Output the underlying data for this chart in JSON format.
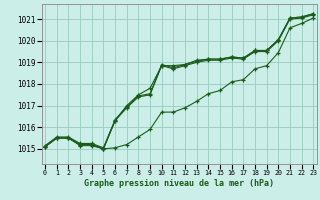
{
  "title": "Graphe pression niveau de la mer (hPa)",
  "xlabel_ticks": [
    0,
    1,
    2,
    3,
    4,
    5,
    6,
    7,
    8,
    9,
    10,
    11,
    12,
    13,
    14,
    15,
    16,
    17,
    18,
    19,
    20,
    21,
    22,
    23
  ],
  "ylim": [
    1014.3,
    1021.7
  ],
  "xlim": [
    -0.3,
    23.3
  ],
  "yticks": [
    1015,
    1016,
    1017,
    1018,
    1019,
    1020,
    1021
  ],
  "bg_color": "#cceee8",
  "grid_color": "#99ccbb",
  "line_color": "#1a5c1a",
  "series": [
    [
      1015.1,
      1015.5,
      1015.5,
      1015.2,
      1015.2,
      1015.0,
      1016.3,
      1016.9,
      1017.4,
      1017.5,
      1018.85,
      1018.7,
      1018.85,
      1019.0,
      1019.1,
      1019.1,
      1019.2,
      1019.15,
      1019.5,
      1019.5,
      1020.0,
      1021.0,
      1021.05,
      1021.2
    ],
    [
      1015.1,
      1015.5,
      1015.5,
      1015.2,
      1015.2,
      1015.0,
      1016.3,
      1017.0,
      1017.5,
      1017.8,
      1018.85,
      1018.85,
      1018.9,
      1019.1,
      1019.15,
      1019.15,
      1019.25,
      1019.2,
      1019.55,
      1019.55,
      1020.05,
      1021.05,
      1021.1,
      1021.25
    ],
    [
      1015.15,
      1015.55,
      1015.55,
      1015.25,
      1015.25,
      1015.05,
      1016.35,
      1016.95,
      1017.45,
      1017.55,
      1018.9,
      1018.75,
      1018.9,
      1019.05,
      1019.15,
      1019.15,
      1019.25,
      1019.2,
      1019.55,
      1019.55,
      1020.05,
      1021.05,
      1021.1,
      1021.25
    ],
    [
      1015.1,
      1015.5,
      1015.5,
      1015.15,
      1015.15,
      1015.0,
      1015.05,
      1015.2,
      1015.55,
      1015.9,
      1016.7,
      1016.7,
      1016.9,
      1017.2,
      1017.55,
      1017.7,
      1018.1,
      1018.2,
      1018.7,
      1018.85,
      1019.45,
      1020.6,
      1020.8,
      1021.05
    ]
  ]
}
